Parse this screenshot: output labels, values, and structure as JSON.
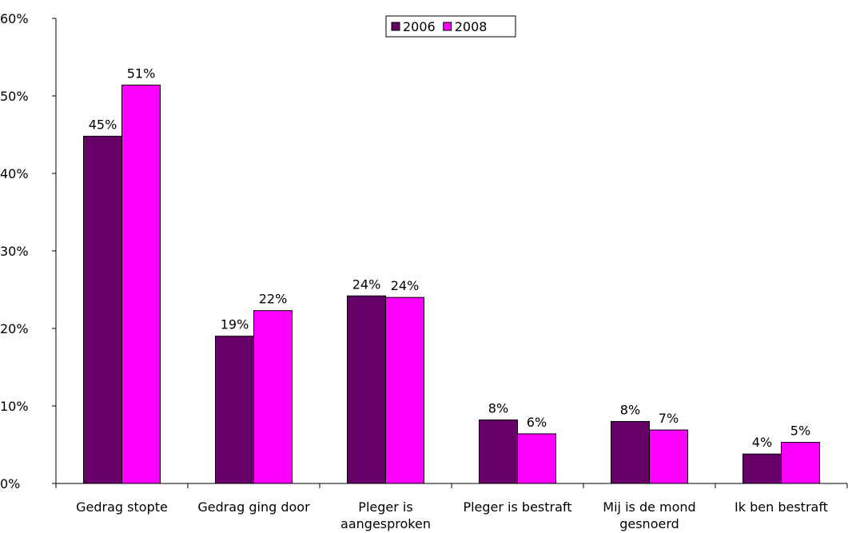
{
  "chart_data": {
    "type": "bar",
    "categories": [
      "Gedrag stopte",
      "Gedrag ging door",
      "Pleger is aangesproken",
      "Pleger is bestraft",
      "Mij is de mond gesnoerd",
      "Ik ben bestraft"
    ],
    "series": [
      {
        "name": "2006",
        "color": "#660066",
        "values": [
          44.8,
          19.0,
          24.2,
          8.2,
          8.0,
          3.8
        ],
        "value_labels": [
          "45%",
          "19%",
          "24%",
          "8%",
          "8%",
          "4%"
        ]
      },
      {
        "name": "2008",
        "color": "#ff00ff",
        "values": [
          51.4,
          22.3,
          24.0,
          6.4,
          6.9,
          5.3
        ],
        "value_labels": [
          "51%",
          "22%",
          "24%",
          "6%",
          "7%",
          "5%"
        ]
      }
    ],
    "ylim": [
      0,
      60
    ],
    "yticks": [
      {
        "value": 0,
        "label": "0%"
      },
      {
        "value": 10,
        "label": "10%"
      },
      {
        "value": 20,
        "label": "20%"
      },
      {
        "value": 30,
        "label": "30%"
      },
      {
        "value": 40,
        "label": "40%"
      },
      {
        "value": 50,
        "label": "50%"
      },
      {
        "value": 60,
        "label": "60%"
      }
    ],
    "grid": false,
    "legend": "top"
  }
}
